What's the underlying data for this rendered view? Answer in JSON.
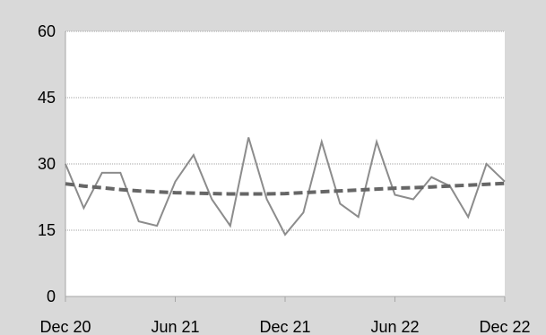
{
  "chart_data": {
    "type": "line",
    "title": "",
    "xlabel": "",
    "ylabel": "",
    "x_tick_labels": [
      "Dec 20",
      "Jun 21",
      "Dec 21",
      "Jun 22",
      "Dec 22"
    ],
    "y_tick_labels": [
      "0",
      "15",
      "30",
      "45",
      "60"
    ],
    "y_ticks": [
      0,
      15,
      30,
      45,
      60
    ],
    "ylim": [
      0,
      60
    ],
    "x_months_range": [
      "Dec 20",
      "Dec 22"
    ],
    "grid": "horizontal",
    "series": [
      {
        "style": "solid",
        "color": "#8c8c8c",
        "values": [
          30,
          20,
          28,
          28,
          17,
          16,
          26,
          32,
          22,
          16,
          36,
          22,
          14,
          19,
          35,
          21,
          18,
          35,
          23,
          22,
          27,
          25,
          18,
          30,
          26
        ]
      },
      {
        "style": "dashed",
        "kind": "trendline",
        "color": "#666666",
        "values": [
          25.5,
          25.0,
          24.6,
          24.2,
          23.9,
          23.7,
          23.5,
          23.4,
          23.3,
          23.2,
          23.2,
          23.2,
          23.3,
          23.5,
          23.7,
          23.9,
          24.1,
          24.3,
          24.5,
          24.6,
          24.8,
          25.0,
          25.2,
          25.4,
          25.6
        ]
      }
    ]
  }
}
